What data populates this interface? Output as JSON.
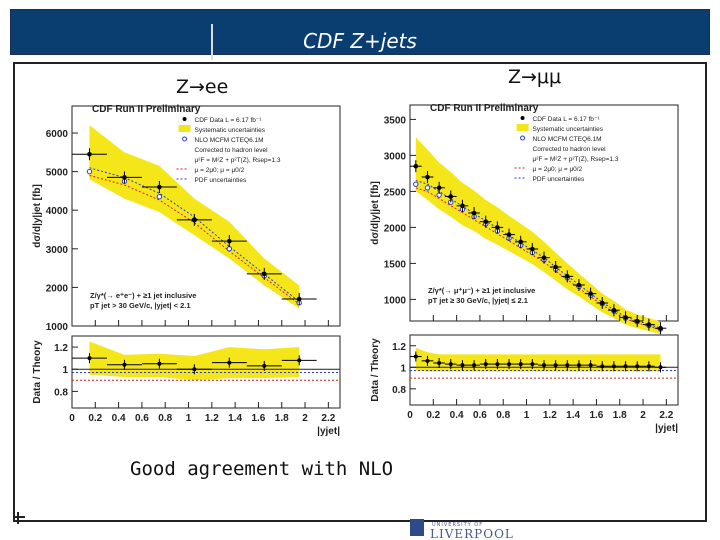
{
  "slide": {
    "title": "CDF Z+jets",
    "caption": "Good agreement with NLO",
    "left_label": "Z→ee",
    "right_label": "Z→μμ",
    "logo": {
      "small": "UNIVERSITY OF",
      "big": "LIVERPOOL"
    }
  },
  "chart_data": [
    {
      "type": "line",
      "title": "CDF Run II Preliminary",
      "ylabel": "dσ/d|y|jet [fb]",
      "xlabel": "|yjet|",
      "ylim": [
        1000,
        6700
      ],
      "yticks": [
        1000,
        2000,
        3000,
        4000,
        5000,
        6000
      ],
      "xlim": [
        0,
        2.3
      ],
      "x": [
        0.15,
        0.45,
        0.75,
        1.05,
        1.35,
        1.65,
        1.95
      ],
      "series": [
        {
          "name": "CDF Data  L = 6.17 fb⁻¹",
          "values": [
            5450,
            4850,
            4600,
            3750,
            3200,
            2350,
            1700
          ]
        },
        {
          "name": "NLO MCFM CTEQ6.1M",
          "values": [
            5000,
            4750,
            4350,
            3750,
            3000,
            2300,
            1600
          ]
        },
        {
          "name": "Systematic uncertainties",
          "lower": [
            4800,
            4300,
            3950,
            3350,
            2750,
            2050,
            1450
          ],
          "upper": [
            6200,
            5500,
            5150,
            4300,
            3700,
            2750,
            2050
          ]
        }
      ],
      "legend_extra": [
        "Corrected to hadron level",
        "μ²F = M²Z + p²T(Z), Rsep=1.3",
        "μ = 2μ0; μ = μ0/2",
        "PDF uncertainties"
      ],
      "annotation": [
        "Z/γ*(→ e⁺e⁻) + ≥1 jet inclusive",
        "pT jet > 30 GeV/c, |yjet| < 2.1"
      ],
      "ratio": {
        "ylabel": "Data / Theory",
        "ylim": [
          0.65,
          1.3
        ],
        "yticks": [
          0.8,
          1,
          1.2
        ],
        "xticks": [
          0,
          0.2,
          0.4,
          0.6,
          0.8,
          1,
          1.2,
          1.4,
          1.6,
          1.8,
          2,
          2.2
        ],
        "values": [
          1.1,
          1.04,
          1.05,
          1.0,
          1.06,
          1.03,
          1.08
        ],
        "band_lower": [
          0.95,
          0.93,
          0.93,
          0.9,
          0.92,
          0.92,
          0.93
        ],
        "band_upper": [
          1.25,
          1.13,
          1.14,
          1.12,
          1.2,
          1.18,
          1.2
        ]
      }
    },
    {
      "type": "line",
      "title": "CDF Run II Preliminary",
      "ylabel": "dσ/d|y|jet [fb]",
      "xlabel": "|yjet|",
      "ylim": [
        700,
        3700
      ],
      "yticks": [
        1000,
        1500,
        2000,
        2500,
        3000,
        3500
      ],
      "xlim": [
        0,
        2.3
      ],
      "x": [
        0.05,
        0.15,
        0.25,
        0.35,
        0.45,
        0.55,
        0.65,
        0.75,
        0.85,
        0.95,
        1.05,
        1.15,
        1.25,
        1.35,
        1.45,
        1.55,
        1.65,
        1.75,
        1.85,
        1.95,
        2.05,
        2.15
      ],
      "series": [
        {
          "name": "CDF Data  L = 6.17 fb⁻¹",
          "values": [
            2850,
            2700,
            2550,
            2430,
            2300,
            2200,
            2080,
            2000,
            1900,
            1800,
            1700,
            1580,
            1450,
            1320,
            1200,
            1080,
            950,
            850,
            750,
            700,
            650,
            600
          ]
        },
        {
          "name": "NLO MCFM CTEQ6.1M",
          "values": [
            2600,
            2550,
            2450,
            2350,
            2250,
            2150,
            2050,
            1950,
            1850,
            1750,
            1650,
            1550,
            1420,
            1300,
            1180,
            1060,
            940,
            840,
            740,
            690,
            640,
            590
          ]
        },
        {
          "name": "Systematic uncertainties",
          "lower": [
            2500,
            2380,
            2250,
            2150,
            2030,
            1950,
            1840,
            1760,
            1670,
            1580,
            1490,
            1380,
            1260,
            1140,
            1040,
            930,
            820,
            740,
            650,
            600,
            560,
            520
          ],
          "upper": [
            3250,
            3080,
            2900,
            2770,
            2620,
            2510,
            2380,
            2280,
            2160,
            2050,
            1940,
            1800,
            1650,
            1500,
            1360,
            1220,
            1080,
            980,
            860,
            790,
            740,
            690
          ]
        }
      ],
      "legend_extra": [
        "Corrected to hadron level",
        "μ²F = M²Z + p²T(Z), Rsep=1.3",
        "μ = 2μ0; μ = μ0/2",
        "PDF uncertainties"
      ],
      "annotation": [
        "Z/γ*(→ μ⁺μ⁻) + ≥1 jet inclusive",
        "pT jet ≥ 30 GeV/c, |yjet| ≤ 2.1"
      ],
      "ratio": {
        "ylabel": "Data / Theory",
        "ylim": [
          0.65,
          1.3
        ],
        "yticks": [
          0.8,
          1,
          1.2
        ],
        "xticks": [
          0,
          0.2,
          0.4,
          0.6,
          0.8,
          1,
          1.2,
          1.4,
          1.6,
          1.8,
          2,
          2.2
        ],
        "values": [
          1.1,
          1.06,
          1.04,
          1.03,
          1.02,
          1.02,
          1.03,
          1.03,
          1.03,
          1.03,
          1.03,
          1.02,
          1.02,
          1.02,
          1.02,
          1.02,
          1.01,
          1.01,
          1.01,
          1.01,
          1.01,
          1.0
        ],
        "band_lower": [
          0.97,
          0.96,
          0.96,
          0.96,
          0.96,
          0.96,
          0.96,
          0.96,
          0.96,
          0.96,
          0.96,
          0.96,
          0.96,
          0.96,
          0.96,
          0.96,
          0.96,
          0.96,
          0.96,
          0.96,
          0.96,
          0.96
        ],
        "band_upper": [
          1.18,
          1.14,
          1.12,
          1.12,
          1.12,
          1.12,
          1.12,
          1.12,
          1.12,
          1.12,
          1.12,
          1.12,
          1.12,
          1.12,
          1.12,
          1.12,
          1.12,
          1.12,
          1.12,
          1.12,
          1.12,
          1.12
        ]
      }
    }
  ],
  "colors": {
    "band": "#f5e61a",
    "data": "#000000",
    "nlo": "#2a3ad0",
    "scale": "#d02020",
    "pdf": "#2a3ad0",
    "title_bg": "#0a3d70"
  }
}
